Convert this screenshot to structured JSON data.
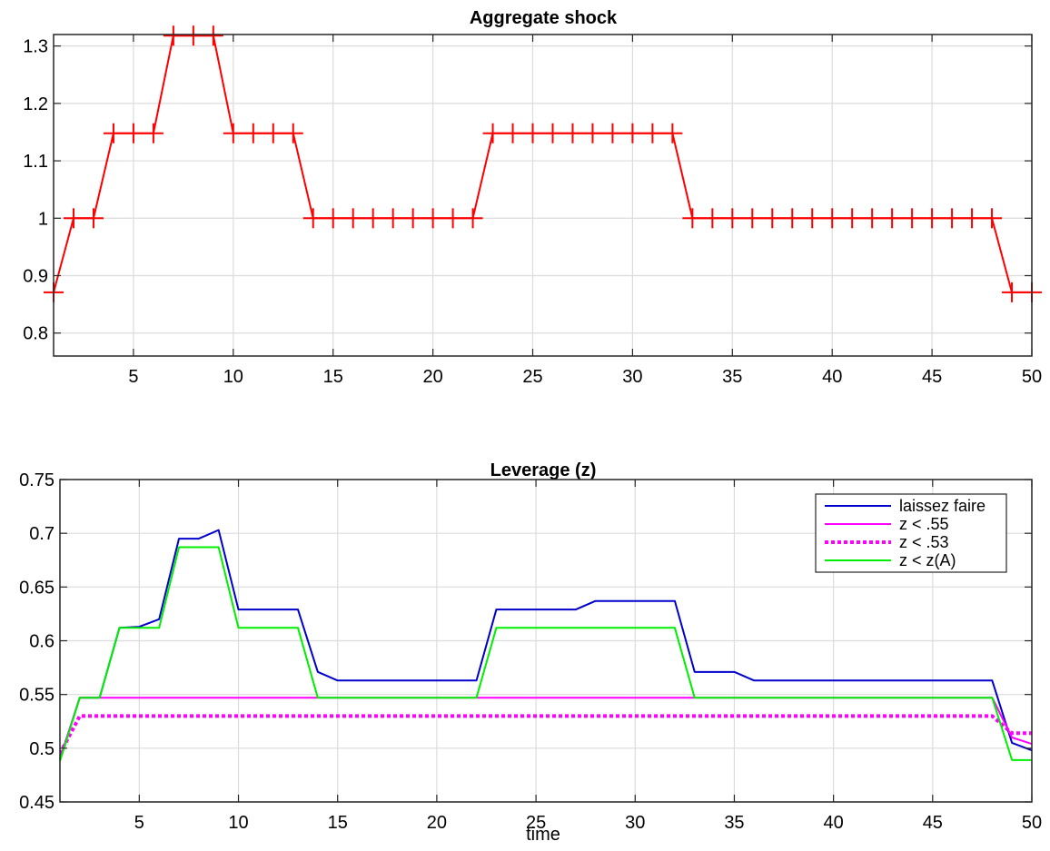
{
  "chart_data": [
    {
      "id": "shock",
      "type": "line",
      "title": "Aggregate shock",
      "xlabel": "",
      "ylabel": "",
      "xlim": [
        1,
        50
      ],
      "ylim": [
        0.76,
        1.32
      ],
      "grid": true,
      "x": [
        1,
        2,
        3,
        4,
        5,
        6,
        7,
        8,
        9,
        10,
        11,
        12,
        13,
        14,
        15,
        16,
        17,
        18,
        19,
        20,
        21,
        22,
        23,
        24,
        25,
        26,
        27,
        28,
        29,
        30,
        31,
        32,
        33,
        34,
        35,
        36,
        37,
        38,
        39,
        40,
        41,
        42,
        43,
        44,
        45,
        46,
        47,
        48,
        49,
        50
      ],
      "xticks": [
        5,
        10,
        15,
        20,
        25,
        30,
        35,
        40,
        45,
        50
      ],
      "xtick_labels": [
        "5",
        "10",
        "15",
        "20",
        "25",
        "30",
        "35",
        "40",
        "45",
        "50"
      ],
      "yticks": [
        0.8,
        0.9,
        1.0,
        1.1,
        1.2,
        1.3
      ],
      "ytick_labels": [
        "0.8",
        "0.9",
        "1",
        "1.1",
        "1.2",
        "1.3"
      ],
      "series": [
        {
          "color": "#ff0000",
          "marker": "+",
          "line_style": "solid",
          "values": [
            0.871,
            1.0,
            1.0,
            1.148,
            1.148,
            1.148,
            1.318,
            1.318,
            1.318,
            1.148,
            1.148,
            1.148,
            1.148,
            1.0,
            1.0,
            1.0,
            1.0,
            1.0,
            1.0,
            1.0,
            1.0,
            1.0,
            1.148,
            1.148,
            1.148,
            1.148,
            1.148,
            1.148,
            1.148,
            1.148,
            1.148,
            1.148,
            1.0,
            1.0,
            1.0,
            1.0,
            1.0,
            1.0,
            1.0,
            1.0,
            1.0,
            1.0,
            1.0,
            1.0,
            1.0,
            1.0,
            1.0,
            1.0,
            0.871,
            0.871
          ]
        }
      ]
    },
    {
      "id": "leverage",
      "type": "line",
      "title": "Leverage (z)",
      "xlabel": "time",
      "ylabel": "",
      "xlim": [
        1,
        50
      ],
      "ylim": [
        0.45,
        0.75
      ],
      "grid": true,
      "legend_position": "top-right",
      "x": [
        1,
        2,
        3,
        4,
        5,
        6,
        7,
        8,
        9,
        10,
        11,
        12,
        13,
        14,
        15,
        16,
        17,
        18,
        19,
        20,
        21,
        22,
        23,
        24,
        25,
        26,
        27,
        28,
        29,
        30,
        31,
        32,
        33,
        34,
        35,
        36,
        37,
        38,
        39,
        40,
        41,
        42,
        43,
        44,
        45,
        46,
        47,
        48,
        49,
        50
      ],
      "xticks": [
        5,
        10,
        15,
        20,
        25,
        30,
        35,
        40,
        45,
        50
      ],
      "xtick_labels": [
        "5",
        "10",
        "15",
        "20",
        "25",
        "30",
        "35",
        "40",
        "45",
        "50"
      ],
      "yticks": [
        0.45,
        0.5,
        0.55,
        0.6,
        0.65,
        0.7,
        0.75
      ],
      "ytick_labels": [
        "0.45",
        "0.5",
        "0.55",
        "0.6",
        "0.65",
        "0.7",
        "0.75"
      ],
      "series": [
        {
          "name": "laissez faire",
          "color": "#0000cc",
          "line_style": "solid",
          "values": [
            0.49,
            0.547,
            0.547,
            0.612,
            0.613,
            0.62,
            0.695,
            0.695,
            0.703,
            0.629,
            0.629,
            0.629,
            0.629,
            0.571,
            0.563,
            0.563,
            0.563,
            0.563,
            0.563,
            0.563,
            0.563,
            0.563,
            0.629,
            0.629,
            0.629,
            0.629,
            0.629,
            0.637,
            0.637,
            0.637,
            0.637,
            0.637,
            0.571,
            0.571,
            0.571,
            0.563,
            0.563,
            0.563,
            0.563,
            0.563,
            0.563,
            0.563,
            0.563,
            0.563,
            0.563,
            0.563,
            0.563,
            0.563,
            0.505,
            0.498
          ]
        },
        {
          "name": "z < .55",
          "color": "#ff00ff",
          "line_style": "solid",
          "values": [
            0.49,
            0.547,
            0.547,
            0.547,
            0.547,
            0.547,
            0.547,
            0.547,
            0.547,
            0.547,
            0.547,
            0.547,
            0.547,
            0.547,
            0.547,
            0.547,
            0.547,
            0.547,
            0.547,
            0.547,
            0.547,
            0.547,
            0.547,
            0.547,
            0.547,
            0.547,
            0.547,
            0.547,
            0.547,
            0.547,
            0.547,
            0.547,
            0.547,
            0.547,
            0.547,
            0.547,
            0.547,
            0.547,
            0.547,
            0.547,
            0.547,
            0.547,
            0.547,
            0.547,
            0.547,
            0.547,
            0.547,
            0.547,
            0.51,
            0.504
          ]
        },
        {
          "name": "z < .53",
          "color": "#ff00ff",
          "line_style": "dotted",
          "values": [
            0.495,
            0.53,
            0.53,
            0.53,
            0.53,
            0.53,
            0.53,
            0.53,
            0.53,
            0.53,
            0.53,
            0.53,
            0.53,
            0.53,
            0.53,
            0.53,
            0.53,
            0.53,
            0.53,
            0.53,
            0.53,
            0.53,
            0.53,
            0.53,
            0.53,
            0.53,
            0.53,
            0.53,
            0.53,
            0.53,
            0.53,
            0.53,
            0.53,
            0.53,
            0.53,
            0.53,
            0.53,
            0.53,
            0.53,
            0.53,
            0.53,
            0.53,
            0.53,
            0.53,
            0.53,
            0.53,
            0.53,
            0.53,
            0.514,
            0.514
          ]
        },
        {
          "name": "z < z(A)",
          "color": "#00ee00",
          "line_style": "solid",
          "values": [
            0.488,
            0.547,
            0.547,
            0.612,
            0.612,
            0.612,
            0.687,
            0.687,
            0.687,
            0.612,
            0.612,
            0.612,
            0.612,
            0.547,
            0.547,
            0.547,
            0.547,
            0.547,
            0.547,
            0.547,
            0.547,
            0.547,
            0.612,
            0.612,
            0.612,
            0.612,
            0.612,
            0.612,
            0.612,
            0.612,
            0.612,
            0.612,
            0.547,
            0.547,
            0.547,
            0.547,
            0.547,
            0.547,
            0.547,
            0.547,
            0.547,
            0.547,
            0.547,
            0.547,
            0.547,
            0.547,
            0.547,
            0.547,
            0.489,
            0.489
          ]
        }
      ]
    }
  ]
}
